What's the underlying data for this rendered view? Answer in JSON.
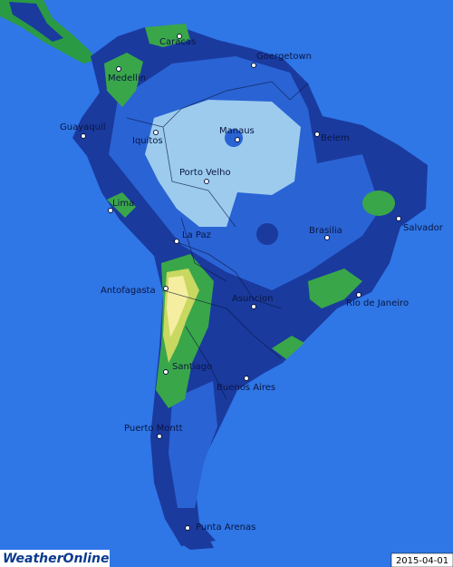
{
  "cities": [
    {
      "name": "Caracas"
    },
    {
      "name": "Goergetown"
    },
    {
      "name": "Medellin"
    },
    {
      "name": "Guayaquil"
    },
    {
      "name": "Iquitos"
    },
    {
      "name": "Manaus"
    },
    {
      "name": "Belem"
    },
    {
      "name": "Porto Velho"
    },
    {
      "name": "Lima"
    },
    {
      "name": "La Paz"
    },
    {
      "name": "Brasilia"
    },
    {
      "name": "Salvador"
    },
    {
      "name": "Antofagasta"
    },
    {
      "name": "Asuncion"
    },
    {
      "name": "Rio de Janeiro"
    },
    {
      "name": "Santiago"
    },
    {
      "name": "Buenos Aires"
    },
    {
      "name": "Puerto Montt"
    },
    {
      "name": "Punta Arenas"
    }
  ],
  "logo": "WeatherOnline",
  "date": "2015-04-01"
}
